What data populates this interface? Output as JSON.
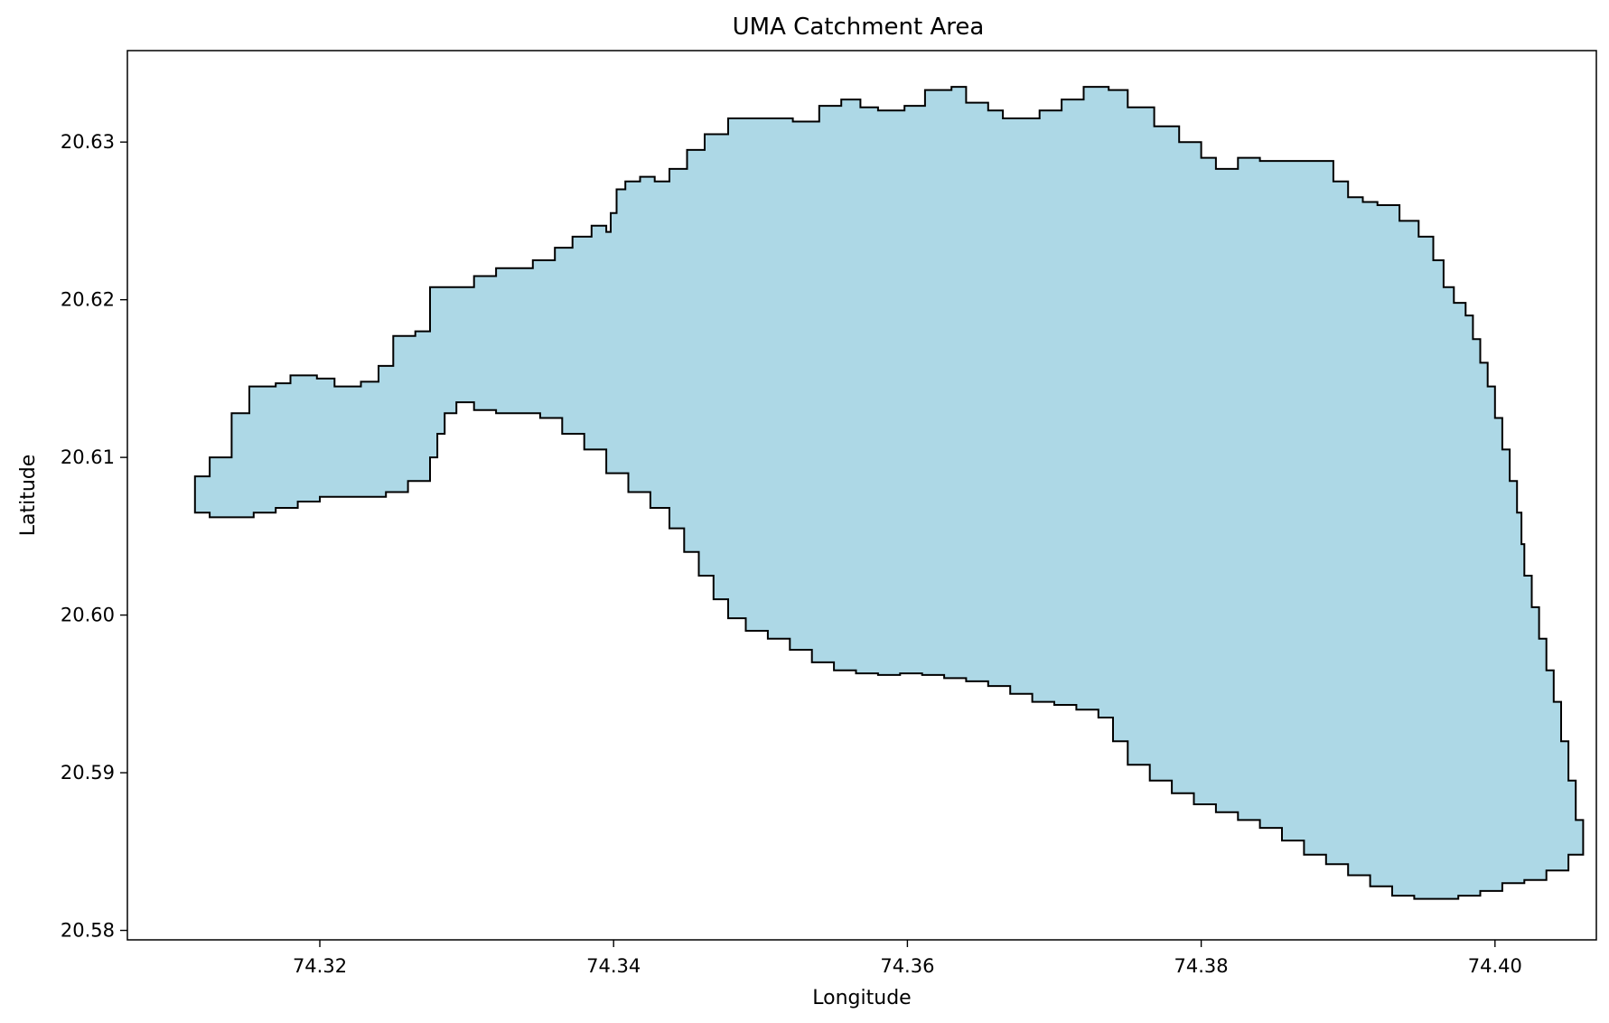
{
  "chart_data": {
    "type": "map",
    "title": "UMA Catchment Area",
    "xlabel": "Longitude",
    "ylabel": "Latitude",
    "xlim": [
      74.3069,
      74.4069
    ],
    "ylim": [
      20.5794,
      20.6358
    ],
    "xticks": [
      74.32,
      74.34,
      74.36,
      74.38,
      74.4
    ],
    "xtick_labels": [
      "74.32",
      "74.34",
      "74.36",
      "74.38",
      "74.40"
    ],
    "yticks": [
      20.58,
      20.59,
      20.6,
      20.61,
      20.62,
      20.63
    ],
    "ytick_labels": [
      "20.58",
      "20.59",
      "20.60",
      "20.61",
      "20.62",
      "20.63"
    ],
    "grid": false,
    "fill_color": "#add8e6",
    "edge_color": "#000000",
    "polygon": [
      [
        74.3115,
        20.6088
      ],
      [
        74.3125,
        20.61
      ],
      [
        74.314,
        20.6128
      ],
      [
        74.3152,
        20.6145
      ],
      [
        74.317,
        20.6147
      ],
      [
        74.318,
        20.6152
      ],
      [
        74.3198,
        20.615
      ],
      [
        74.321,
        20.6145
      ],
      [
        74.3228,
        20.6148
      ],
      [
        74.324,
        20.6158
      ],
      [
        74.325,
        20.6177
      ],
      [
        74.3265,
        20.618
      ],
      [
        74.3275,
        20.6195
      ],
      [
        74.3275,
        20.6208
      ],
      [
        74.329,
        20.6208
      ],
      [
        74.3305,
        20.6215
      ],
      [
        74.332,
        20.622
      ],
      [
        74.3345,
        20.6225
      ],
      [
        74.336,
        20.6233
      ],
      [
        74.3372,
        20.624
      ],
      [
        74.3385,
        20.6247
      ],
      [
        74.3395,
        20.6243
      ],
      [
        74.3398,
        20.6255
      ],
      [
        74.3402,
        20.627
      ],
      [
        74.3408,
        20.6275
      ],
      [
        74.3418,
        20.6278
      ],
      [
        74.3428,
        20.6275
      ],
      [
        74.3438,
        20.6283
      ],
      [
        74.345,
        20.6295
      ],
      [
        74.3462,
        20.6305
      ],
      [
        74.3478,
        20.6315
      ],
      [
        74.3505,
        20.6315
      ],
      [
        74.3522,
        20.6313
      ],
      [
        74.354,
        20.6323
      ],
      [
        74.3555,
        20.6327
      ],
      [
        74.3568,
        20.6322
      ],
      [
        74.358,
        20.632
      ],
      [
        74.3598,
        20.6323
      ],
      [
        74.3612,
        20.6333
      ],
      [
        74.363,
        20.6335
      ],
      [
        74.364,
        20.6325
      ],
      [
        74.3655,
        20.632
      ],
      [
        74.3665,
        20.6315
      ],
      [
        74.3678,
        20.6315
      ],
      [
        74.369,
        20.632
      ],
      [
        74.3705,
        20.6327
      ],
      [
        74.372,
        20.6335
      ],
      [
        74.3737,
        20.6333
      ],
      [
        74.375,
        20.6322
      ],
      [
        74.3768,
        20.631
      ],
      [
        74.3785,
        20.63
      ],
      [
        74.38,
        20.629
      ],
      [
        74.381,
        20.6283
      ],
      [
        74.3825,
        20.629
      ],
      [
        74.384,
        20.6288
      ],
      [
        74.3855,
        20.6288
      ],
      [
        74.3875,
        20.6288
      ],
      [
        74.389,
        20.6275
      ],
      [
        74.39,
        20.6265
      ],
      [
        74.391,
        20.6262
      ],
      [
        74.392,
        20.626
      ],
      [
        74.3935,
        20.625
      ],
      [
        74.3948,
        20.624
      ],
      [
        74.3958,
        20.6225
      ],
      [
        74.3965,
        20.6208
      ],
      [
        74.3972,
        20.6198
      ],
      [
        74.398,
        20.619
      ],
      [
        74.3985,
        20.6175
      ],
      [
        74.399,
        20.616
      ],
      [
        74.3995,
        20.6145
      ],
      [
        74.4,
        20.6125
      ],
      [
        74.4005,
        20.6105
      ],
      [
        74.401,
        20.6085
      ],
      [
        74.4015,
        20.6065
      ],
      [
        74.4018,
        20.6045
      ],
      [
        74.402,
        20.6025
      ],
      [
        74.4025,
        20.6005
      ],
      [
        74.403,
        20.5985
      ],
      [
        74.4035,
        20.5965
      ],
      [
        74.404,
        20.5945
      ],
      [
        74.4045,
        20.592
      ],
      [
        74.405,
        20.5895
      ],
      [
        74.4055,
        20.587
      ],
      [
        74.406,
        20.5848
      ],
      [
        74.405,
        20.5838
      ],
      [
        74.4035,
        20.5832
      ],
      [
        74.402,
        20.583
      ],
      [
        74.4005,
        20.5825
      ],
      [
        74.399,
        20.5822
      ],
      [
        74.3975,
        20.582
      ],
      [
        74.396,
        20.582
      ],
      [
        74.3945,
        20.5822
      ],
      [
        74.393,
        20.5828
      ],
      [
        74.3915,
        20.5835
      ],
      [
        74.39,
        20.5842
      ],
      [
        74.3885,
        20.5848
      ],
      [
        74.387,
        20.5857
      ],
      [
        74.3855,
        20.5865
      ],
      [
        74.384,
        20.587
      ],
      [
        74.3825,
        20.5875
      ],
      [
        74.381,
        20.588
      ],
      [
        74.3795,
        20.5887
      ],
      [
        74.378,
        20.5895
      ],
      [
        74.3765,
        20.5905
      ],
      [
        74.375,
        20.592
      ],
      [
        74.374,
        20.5935
      ],
      [
        74.373,
        20.594
      ],
      [
        74.3715,
        20.5943
      ],
      [
        74.37,
        20.5945
      ],
      [
        74.3685,
        20.595
      ],
      [
        74.367,
        20.5955
      ],
      [
        74.3655,
        20.5958
      ],
      [
        74.364,
        20.596
      ],
      [
        74.3625,
        20.5962
      ],
      [
        74.361,
        20.5963
      ],
      [
        74.3595,
        20.5962
      ],
      [
        74.358,
        20.5963
      ],
      [
        74.3565,
        20.5965
      ],
      [
        74.355,
        20.597
      ],
      [
        74.3535,
        20.5978
      ],
      [
        74.352,
        20.5985
      ],
      [
        74.3505,
        20.599
      ],
      [
        74.349,
        20.5998
      ],
      [
        74.3478,
        20.601
      ],
      [
        74.3468,
        20.6025
      ],
      [
        74.3458,
        20.604
      ],
      [
        74.3448,
        20.6055
      ],
      [
        74.3438,
        20.6068
      ],
      [
        74.3425,
        20.6078
      ],
      [
        74.341,
        20.609
      ],
      [
        74.3395,
        20.6105
      ],
      [
        74.338,
        20.6115
      ],
      [
        74.3365,
        20.6125
      ],
      [
        74.335,
        20.6128
      ],
      [
        74.3335,
        20.6128
      ],
      [
        74.332,
        20.613
      ],
      [
        74.3305,
        20.6135
      ],
      [
        74.3293,
        20.6128
      ],
      [
        74.3285,
        20.6115
      ],
      [
        74.328,
        20.61
      ],
      [
        74.3275,
        20.6085
      ],
      [
        74.326,
        20.6078
      ],
      [
        74.3245,
        20.6075
      ],
      [
        74.323,
        20.6075
      ],
      [
        74.3215,
        20.6075
      ],
      [
        74.32,
        20.6072
      ],
      [
        74.3185,
        20.6068
      ],
      [
        74.317,
        20.6065
      ],
      [
        74.3155,
        20.6062
      ],
      [
        74.314,
        20.6062
      ],
      [
        74.3125,
        20.6065
      ],
      [
        74.3115,
        20.6075
      ]
    ]
  }
}
